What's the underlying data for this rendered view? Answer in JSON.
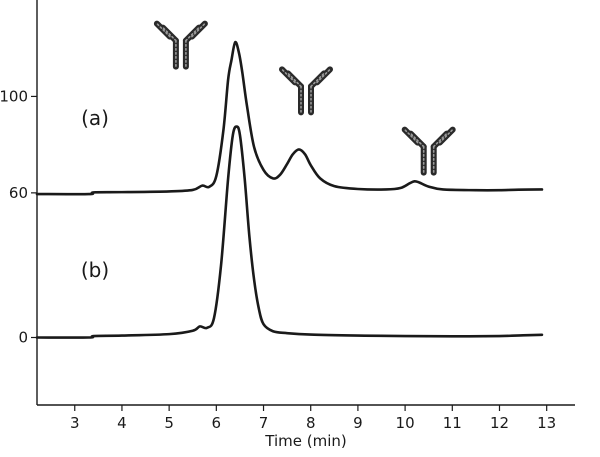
{
  "chart_data": {
    "type": "line",
    "title": "",
    "xlabel": "Time (min)",
    "ylabel": "",
    "xlim": [
      2.2,
      13.6
    ],
    "ylim": [
      -28,
      140
    ],
    "x_ticks": [
      3,
      4,
      5,
      6,
      7,
      8,
      9,
      10,
      11,
      12,
      13
    ],
    "y_ticks": [
      0,
      60,
      100
    ],
    "series": [
      {
        "label": "(a)",
        "x": [
          2.2,
          3.3,
          3.4,
          4.0,
          5.0,
          5.5,
          5.7,
          5.85,
          6.0,
          6.15,
          6.25,
          6.32,
          6.4,
          6.48,
          6.55,
          6.65,
          6.8,
          7.0,
          7.2,
          7.35,
          7.5,
          7.62,
          7.75,
          7.88,
          8.0,
          8.2,
          8.5,
          9.0,
          9.6,
          9.9,
          10.1,
          10.2,
          10.3,
          10.5,
          10.8,
          11.5,
          12.0,
          12.4,
          12.9
        ],
        "y": [
          59.5,
          59.5,
          60.2,
          60.3,
          60.6,
          61.2,
          63.0,
          62.5,
          67.0,
          86.0,
          107.0,
          115.0,
          122.5,
          118.0,
          110.0,
          96.0,
          79.0,
          69.5,
          66.0,
          67.5,
          72.0,
          76.0,
          78.0,
          76.0,
          71.5,
          66.0,
          62.8,
          61.6,
          61.4,
          62.0,
          64.0,
          64.8,
          64.3,
          62.6,
          61.4,
          61.1,
          61.1,
          61.3,
          61.4
        ]
      },
      {
        "label": "(b)",
        "x": [
          2.2,
          3.3,
          3.4,
          4.0,
          5.0,
          5.5,
          5.65,
          5.8,
          5.95,
          6.1,
          6.25,
          6.35,
          6.43,
          6.5,
          6.6,
          6.7,
          6.8,
          6.9,
          7.0,
          7.2,
          7.5,
          8.0,
          9.0,
          10.0,
          11.0,
          12.0,
          12.5,
          12.9
        ],
        "y": [
          0.0,
          0.0,
          0.6,
          0.8,
          1.4,
          2.8,
          4.6,
          4.0,
          8.0,
          30.0,
          66.0,
          84.0,
          87.5,
          84.0,
          66.0,
          42.0,
          24.0,
          12.0,
          5.5,
          2.6,
          1.8,
          1.2,
          0.8,
          0.6,
          0.5,
          0.6,
          0.9,
          1.1
        ]
      }
    ],
    "annotations": [
      {
        "type": "antibody-icon",
        "near_x": 5.25,
        "near_y": 124
      },
      {
        "type": "antibody-icon",
        "near_x": 7.9,
        "near_y": 105
      },
      {
        "type": "antibody-icon",
        "near_x": 10.5,
        "near_y": 80
      }
    ],
    "grid": false,
    "legend": "none"
  }
}
